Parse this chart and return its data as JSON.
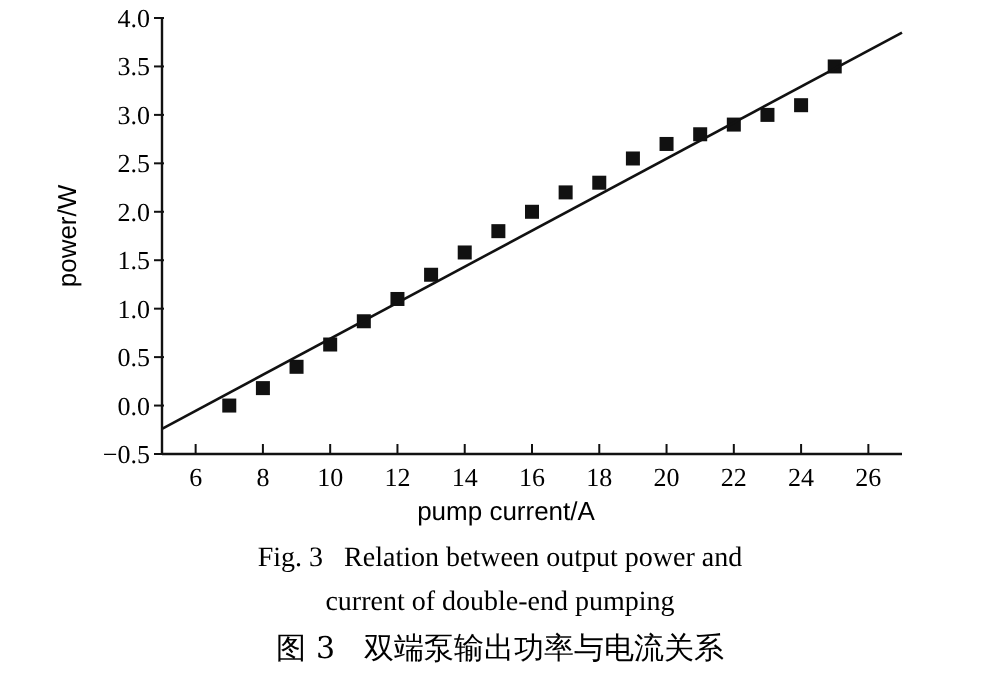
{
  "chart_data": {
    "type": "scatter",
    "xlabel": "pump current/A",
    "ylabel": "power/W",
    "xlim": [
      5,
      27
    ],
    "ylim": [
      -0.5,
      4.0
    ],
    "xticks": [
      6,
      8,
      10,
      12,
      14,
      16,
      18,
      20,
      22,
      24,
      26
    ],
    "yticks": [
      {
        "value": -0.5,
        "label": "−0.5"
      },
      {
        "value": 0,
        "label": "0.0"
      },
      {
        "value": 0.5,
        "label": "0.5"
      },
      {
        "value": 1,
        "label": "1.0"
      },
      {
        "value": 1.5,
        "label": "1.5"
      },
      {
        "value": 2,
        "label": "2.0"
      },
      {
        "value": 2.5,
        "label": "2.5"
      },
      {
        "value": 3,
        "label": "3.0"
      },
      {
        "value": 3.5,
        "label": "3.5"
      },
      {
        "value": 4,
        "label": "4.0"
      }
    ],
    "series": [
      {
        "marker": "square",
        "color": "#111111",
        "x": [
          7,
          8,
          9,
          10,
          11,
          12,
          13,
          14,
          15,
          16,
          17,
          18,
          19,
          20,
          21,
          22,
          23,
          24,
          25
        ],
        "values": [
          0,
          0.18,
          0.4,
          0.63,
          0.87,
          1.1,
          1.35,
          1.58,
          1.8,
          2.0,
          2.2,
          2.3,
          2.55,
          2.7,
          2.8,
          2.9,
          3.0,
          3.1,
          3.5
        ]
      },
      {
        "type": "line",
        "color": "#111111",
        "line_style": "solid",
        "x": [
          5,
          27
        ],
        "values": [
          -0.24,
          3.85
        ]
      }
    ],
    "annotations": [
      "Fig. 3   Relation between output power and",
      "current of double-end pumping",
      "图 3   双端泵输出功率与电流关系"
    ]
  }
}
